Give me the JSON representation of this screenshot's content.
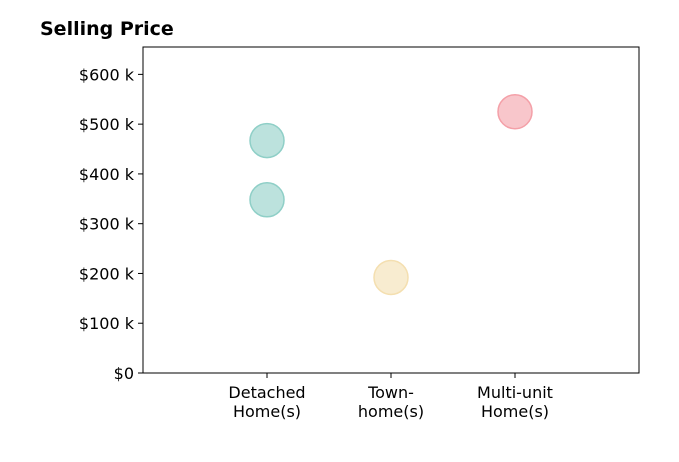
{
  "chart_data": {
    "type": "scatter",
    "title": "Selling Price",
    "xlabel": "",
    "ylabel": "",
    "categories": [
      [
        "Detached",
        "Home(s)"
      ],
      [
        "Town-",
        "home(s)"
      ],
      [
        "Multi-unit",
        "Home(s)"
      ]
    ],
    "ylim": [
      0,
      655000
    ],
    "yticks": [
      {
        "value": 0,
        "label": "$0"
      },
      {
        "value": 100000,
        "label": "$100 k"
      },
      {
        "value": 200000,
        "label": "$200 k"
      },
      {
        "value": 300000,
        "label": "$300 k"
      },
      {
        "value": 400000,
        "label": "$400 k"
      },
      {
        "value": 500000,
        "label": "$500 k"
      },
      {
        "value": 600000,
        "label": "$600 k"
      }
    ],
    "grid": false,
    "points": [
      {
        "category": 0,
        "value": 467000,
        "color": "#8fcfc7"
      },
      {
        "category": 0,
        "value": 348000,
        "color": "#8fcfc7"
      },
      {
        "category": 1,
        "value": 192000,
        "color": "#f4dfb0"
      },
      {
        "category": 2,
        "value": 525000,
        "color": "#f4a0a8"
      }
    ]
  }
}
